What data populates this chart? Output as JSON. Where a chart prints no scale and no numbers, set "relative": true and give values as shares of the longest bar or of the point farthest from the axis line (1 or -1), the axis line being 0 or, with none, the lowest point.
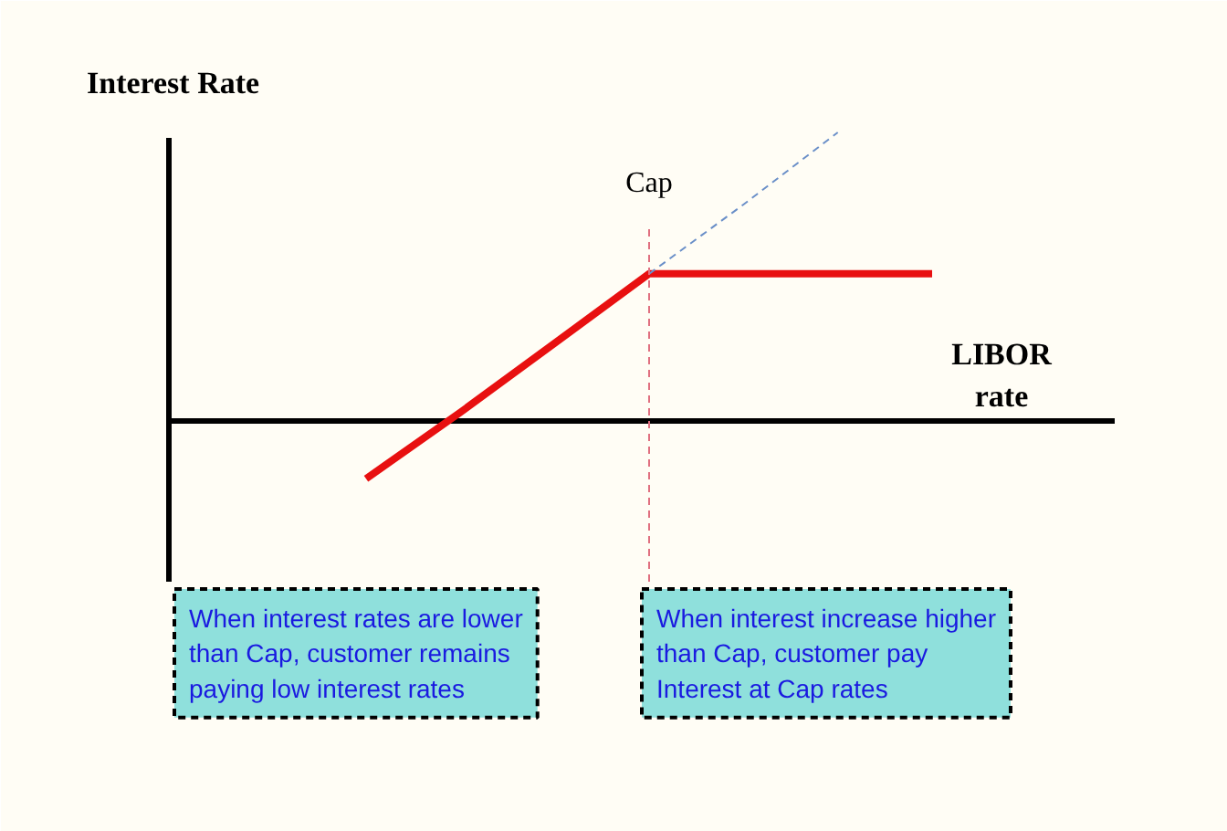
{
  "chart_data": {
    "type": "line",
    "relative": true,
    "ylabel": "Interest Rate",
    "xlabel": "LIBOR rate",
    "categories": [
      null,
      null,
      null,
      null,
      null,
      null,
      null
    ],
    "series": [
      {
        "color": "#e81010",
        "line_style": "solid",
        "values": [
          -0.2,
          0.03,
          0.27,
          0.51,
          0.51,
          0.51,
          0.51
        ]
      },
      {
        "color": "#6a8fc8",
        "line_style": "dashed",
        "values": [
          null,
          null,
          null,
          0.51,
          0.75,
          1.0,
          null
        ]
      }
    ],
    "annotations": [
      "Cap",
      "When interest rates are lower than Cap, customer remains paying low interest rates",
      "When interest increase higher than Cap, customer pay Interest at Cap rates"
    ],
    "grid": false
  }
}
